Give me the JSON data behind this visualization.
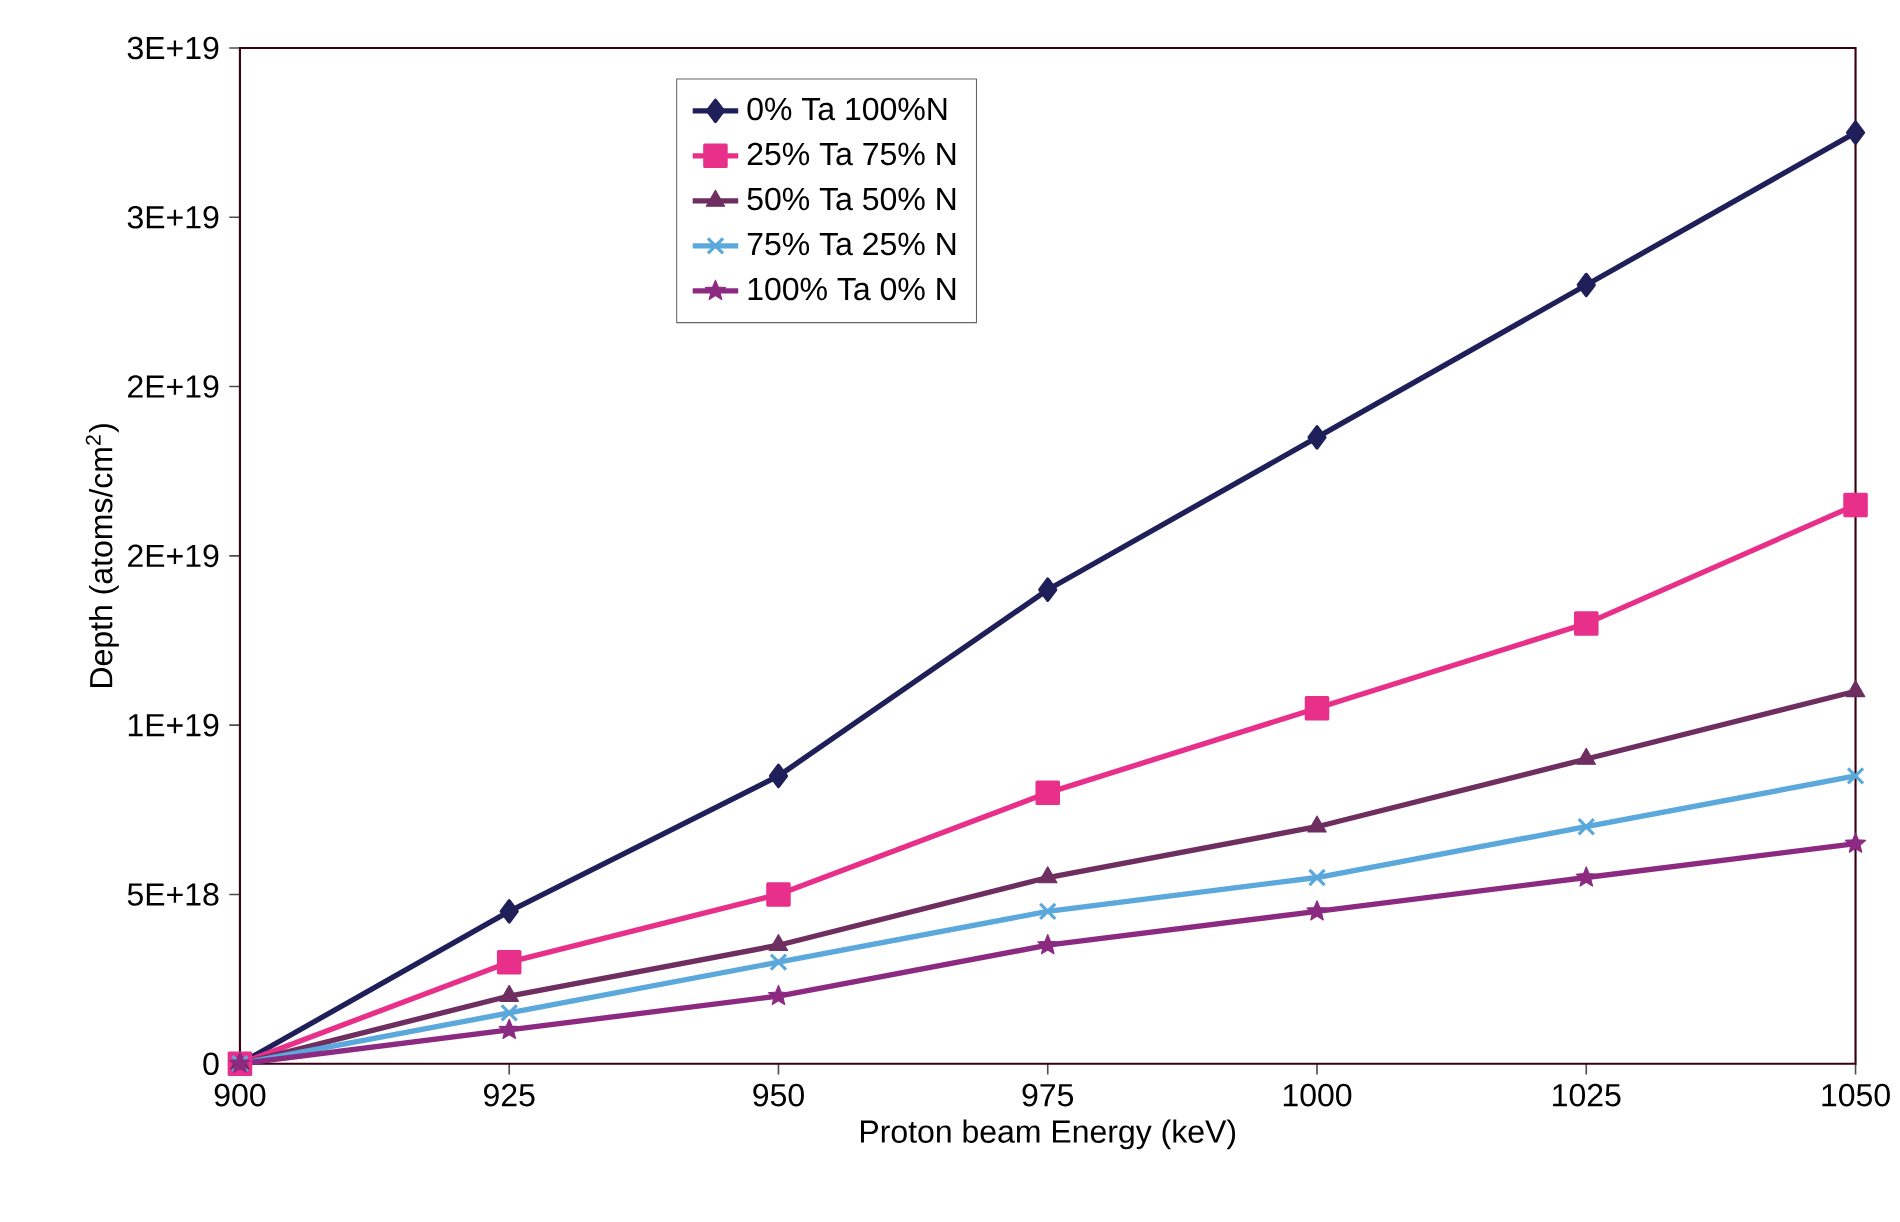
{
  "chart_data": {
    "type": "line",
    "xlabel": "Proton beam Energy (keV)",
    "ylabel": "Depth (atoms/cm$^{2}$)",
    "x": [
      900,
      925,
      950,
      975,
      1000,
      1025,
      1050
    ],
    "series": [
      {
        "name": "0% Ta 100%N",
        "color": "#1f1f5a",
        "marker": "diamond",
        "values": [
          0,
          4.5e+18,
          8.5e+18,
          1.4e+19,
          1.85e+19,
          2.3e+19,
          2.75e+19
        ]
      },
      {
        "name": "25% Ta 75% N",
        "color": "#e8308a",
        "marker": "square",
        "values": [
          0,
          3e+18,
          5e+18,
          8e+18,
          1.05e+19,
          1.3e+19,
          1.65e+19
        ]
      },
      {
        "name": "50% Ta 50% N",
        "color": "#6e2f60",
        "marker": "triangle",
        "values": [
          0,
          2e+18,
          3.5e+18,
          5.5e+18,
          7e+18,
          9e+18,
          1.1e+19
        ]
      },
      {
        "name": "75% Ta 25% N",
        "color": "#5aa8dc",
        "marker": "cross",
        "values": [
          0,
          1.5e+18,
          3e+18,
          4.5e+18,
          5.5e+18,
          7e+18,
          8.5e+18
        ]
      },
      {
        "name": "100% Ta 0% N",
        "color": "#8c2a82",
        "marker": "star",
        "values": [
          0,
          1e+18,
          2e+18,
          3.5e+18,
          4.5e+18,
          5.5e+18,
          6.5e+18
        ]
      }
    ],
    "xlim": [
      900,
      1050
    ],
    "xticks": [
      900,
      925,
      950,
      975,
      1000,
      1025,
      1050
    ],
    "ylim": [
      0,
      3e+19
    ],
    "yticks": [
      {
        "value": 0,
        "label": "0"
      },
      {
        "value": 5e+18,
        "label": "5E+18"
      },
      {
        "value": 1e+19,
        "label": "1E+19"
      },
      {
        "value": 1.5e+19,
        "label": "2E+19"
      },
      {
        "value": 2e+19,
        "label": "2E+19"
      },
      {
        "value": 2.5e+19,
        "label": "3E+19"
      },
      {
        "value": 3e+19,
        "label": "3E+19"
      }
    ],
    "grid": false,
    "legend": "top left",
    "line_style": "solid"
  }
}
